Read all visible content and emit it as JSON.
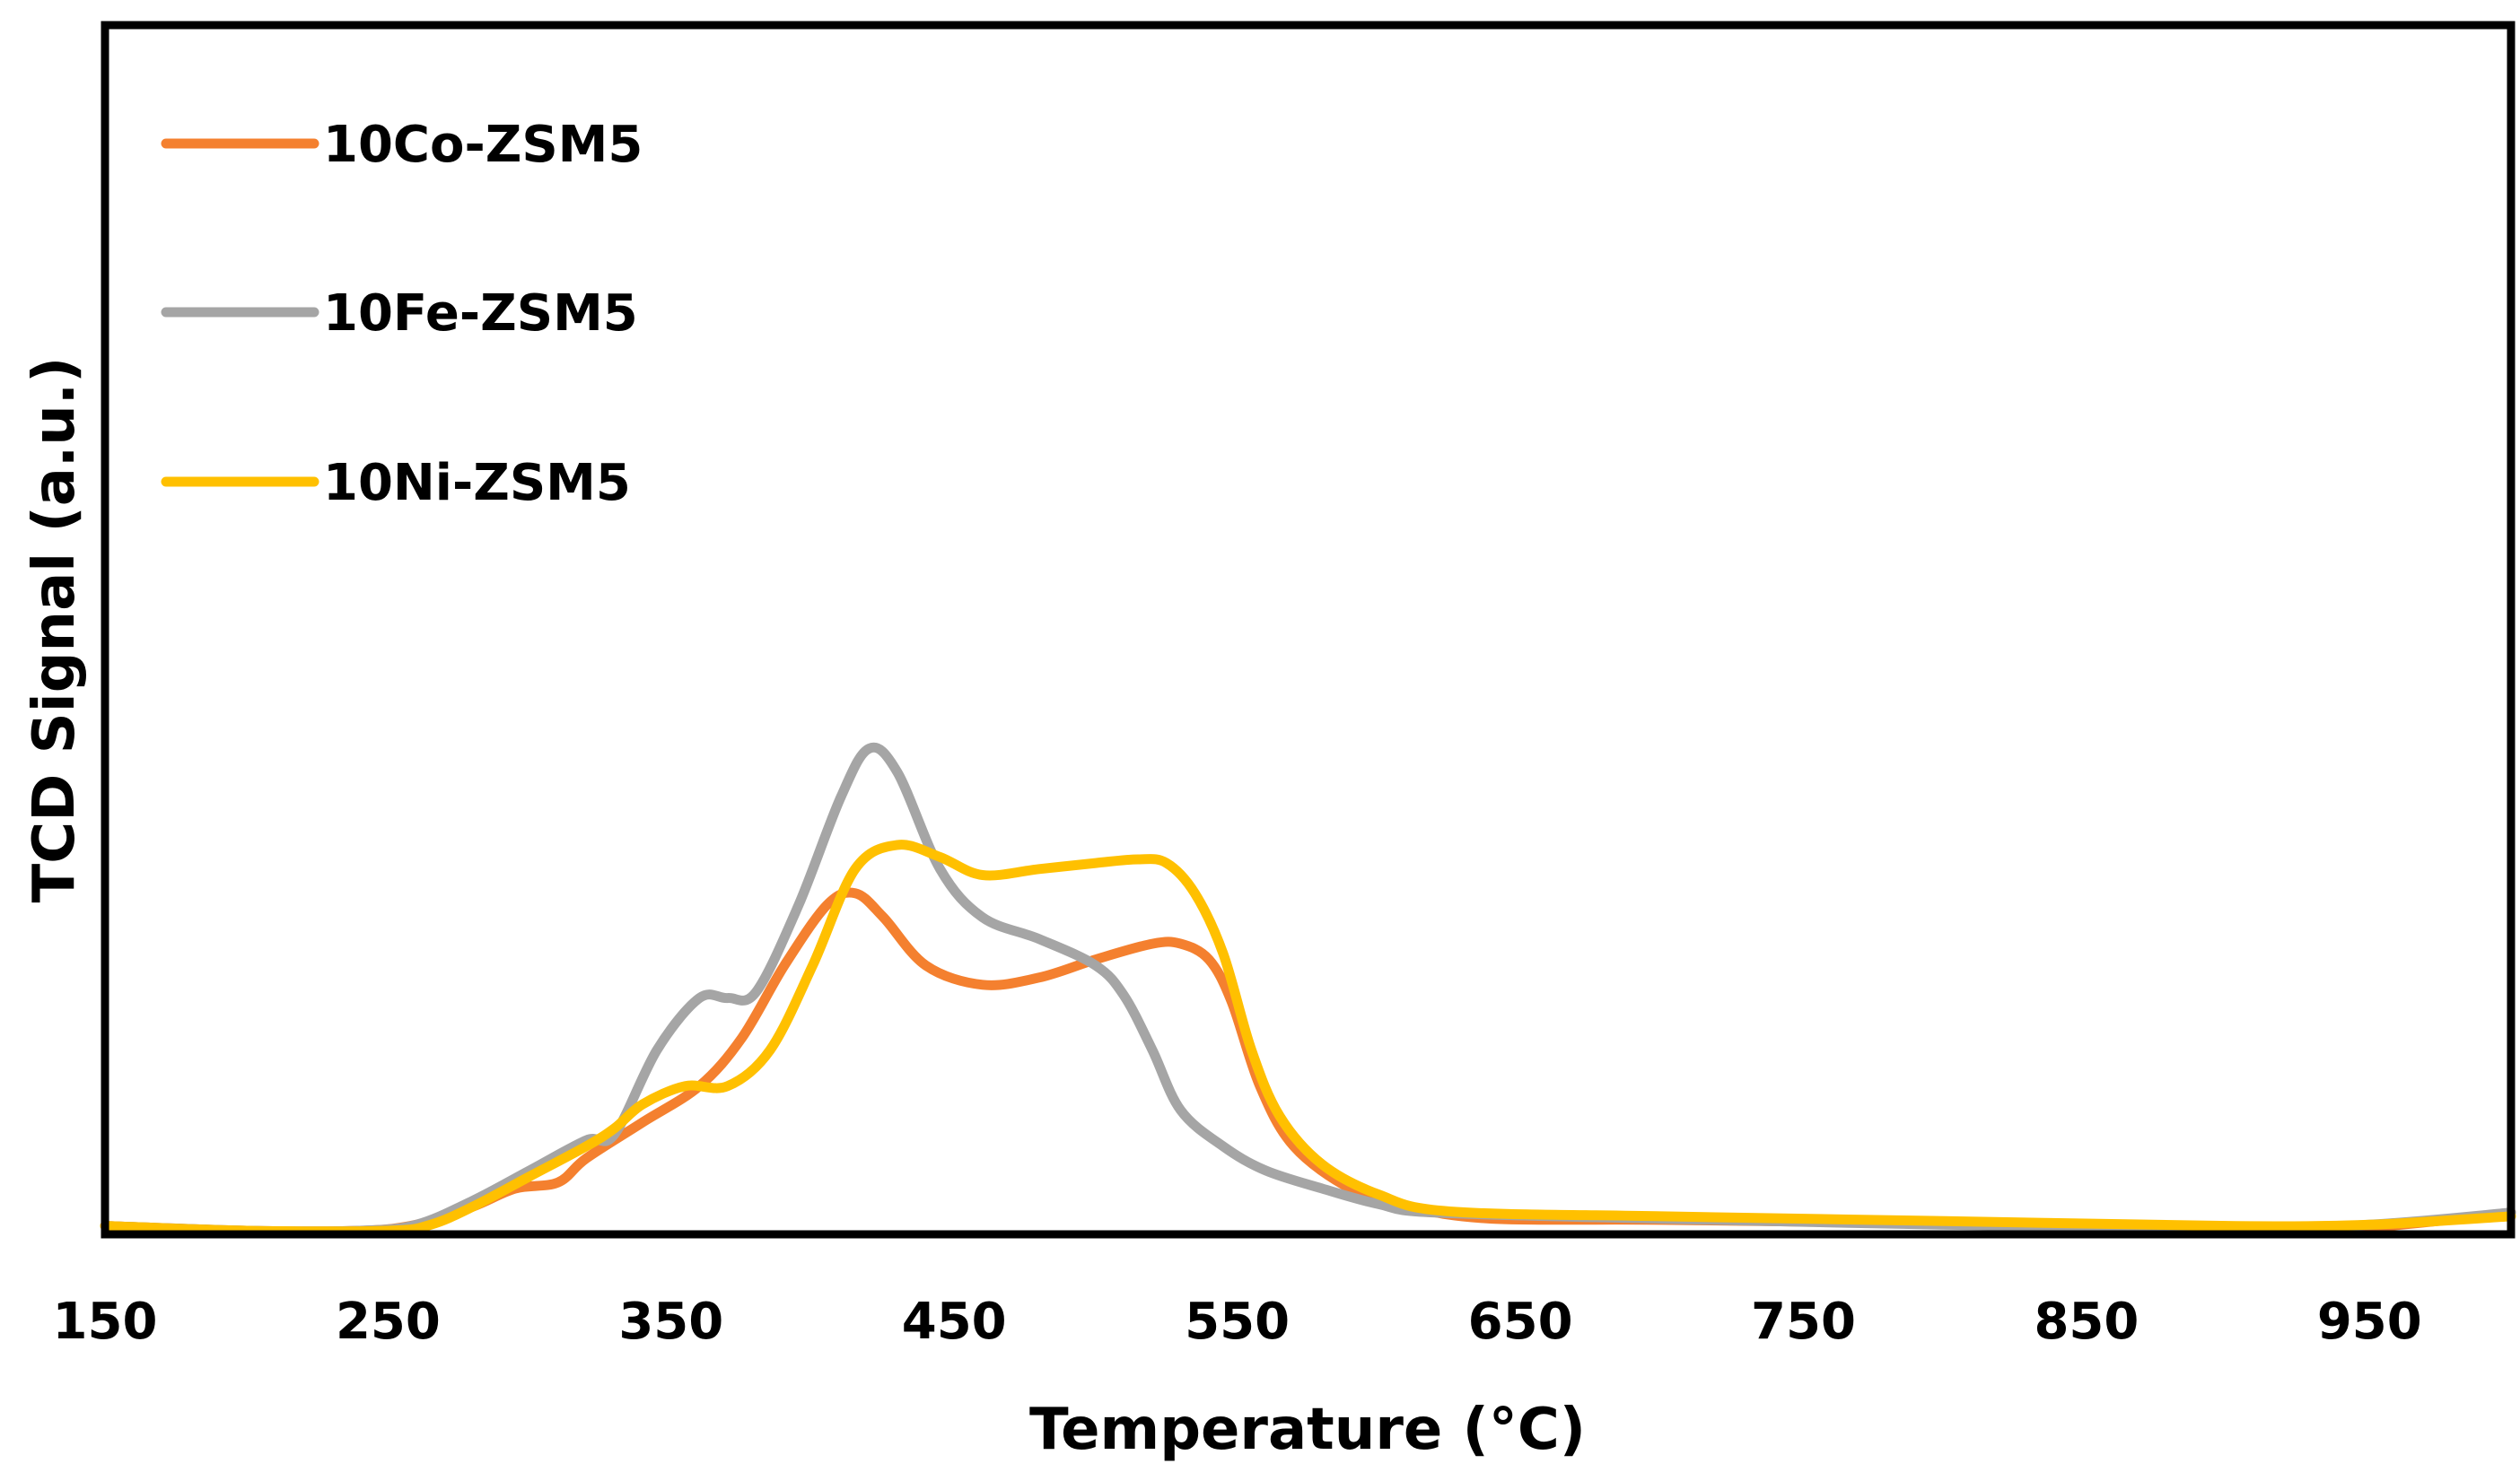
{
  "chart_data": {
    "type": "line",
    "title": "",
    "xlabel": "Temperature (°C)",
    "ylabel": "TCD Signal (a.u.)",
    "xlim": [
      150,
      1000
    ],
    "ylim": [
      0,
      100
    ],
    "xticks": [
      150,
      250,
      350,
      450,
      550,
      650,
      750,
      850,
      950
    ],
    "yticks": [],
    "grid": false,
    "legend_position": "top-left",
    "series": [
      {
        "name": "10Co-ZSM5",
        "color": "#F4802F",
        "points": [
          [
            150,
            0.4
          ],
          [
            200,
            0.0
          ],
          [
            240,
            0.0
          ],
          [
            260,
            0.5
          ],
          [
            280,
            2.0
          ],
          [
            295,
            3.5
          ],
          [
            310,
            4.0
          ],
          [
            320,
            6.0
          ],
          [
            340,
            9.0
          ],
          [
            360,
            12.0
          ],
          [
            375,
            16.0
          ],
          [
            390,
            22.0
          ],
          [
            405,
            27.0
          ],
          [
            415,
            28.0
          ],
          [
            425,
            26.0
          ],
          [
            440,
            22.0
          ],
          [
            460,
            20.4
          ],
          [
            480,
            21.0
          ],
          [
            500,
            22.5
          ],
          [
            520,
            23.8
          ],
          [
            530,
            23.8
          ],
          [
            540,
            22.5
          ],
          [
            548,
            19.0
          ],
          [
            558,
            12.0
          ],
          [
            570,
            7.0
          ],
          [
            590,
            3.5
          ],
          [
            610,
            2.0
          ],
          [
            640,
            1.0
          ],
          [
            700,
            0.9
          ],
          [
            800,
            0.6
          ],
          [
            900,
            0.2
          ],
          [
            950,
            0.3
          ],
          [
            1000,
            1.5
          ]
        ]
      },
      {
        "name": "10Fe-ZSM5",
        "color": "#A5A5A5",
        "points": [
          [
            150,
            0.4
          ],
          [
            200,
            0.0
          ],
          [
            240,
            0.0
          ],
          [
            260,
            0.5
          ],
          [
            280,
            2.5
          ],
          [
            300,
            5.0
          ],
          [
            320,
            7.5
          ],
          [
            330,
            8.0
          ],
          [
            345,
            15.0
          ],
          [
            360,
            19.3
          ],
          [
            370,
            19.3
          ],
          [
            380,
            19.8
          ],
          [
            395,
            27.0
          ],
          [
            410,
            36.0
          ],
          [
            420,
            40.0
          ],
          [
            430,
            38.0
          ],
          [
            445,
            30.0
          ],
          [
            460,
            26.0
          ],
          [
            480,
            24.2
          ],
          [
            500,
            22.0
          ],
          [
            510,
            19.5
          ],
          [
            520,
            15.0
          ],
          [
            530,
            10.0
          ],
          [
            545,
            7.0
          ],
          [
            560,
            5.0
          ],
          [
            580,
            3.5
          ],
          [
            600,
            2.2
          ],
          [
            620,
            1.5
          ],
          [
            700,
            1.0
          ],
          [
            800,
            0.5
          ],
          [
            900,
            0.2
          ],
          [
            950,
            0.5
          ],
          [
            1000,
            1.5
          ]
        ]
      },
      {
        "name": "10Ni-ZSM5",
        "color": "#FFC000",
        "points": [
          [
            150,
            0.4
          ],
          [
            200,
            0.0
          ],
          [
            250,
            0.0
          ],
          [
            265,
            0.5
          ],
          [
            280,
            2.0
          ],
          [
            300,
            4.5
          ],
          [
            320,
            7.0
          ],
          [
            330,
            8.5
          ],
          [
            340,
            10.5
          ],
          [
            355,
            12.0
          ],
          [
            370,
            12.0
          ],
          [
            385,
            15.0
          ],
          [
            400,
            22.0
          ],
          [
            415,
            30.0
          ],
          [
            430,
            32.0
          ],
          [
            445,
            31.0
          ],
          [
            460,
            29.5
          ],
          [
            480,
            30.0
          ],
          [
            500,
            30.5
          ],
          [
            515,
            30.8
          ],
          [
            525,
            30.5
          ],
          [
            535,
            28.0
          ],
          [
            545,
            23.0
          ],
          [
            555,
            15.0
          ],
          [
            565,
            9.5
          ],
          [
            580,
            5.5
          ],
          [
            600,
            3.0
          ],
          [
            625,
            1.6
          ],
          [
            700,
            1.2
          ],
          [
            800,
            0.8
          ],
          [
            900,
            0.4
          ],
          [
            950,
            0.5
          ],
          [
            1000,
            1.2
          ]
        ]
      }
    ]
  }
}
